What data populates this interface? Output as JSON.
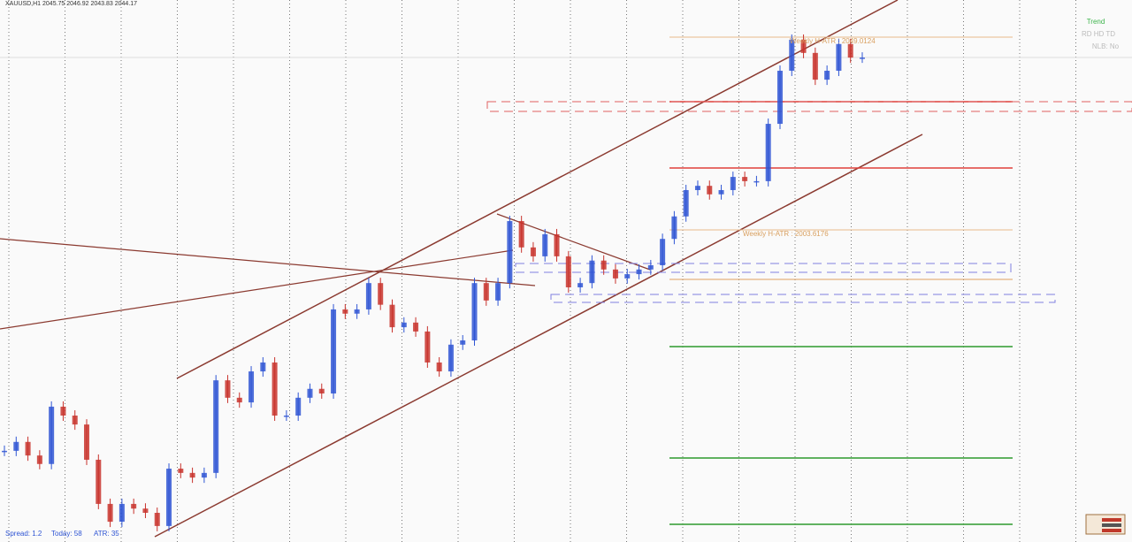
{
  "chart_data": {
    "type": "candle",
    "title": "XAUUSD,H1  2045.75 2046.92 2043.83 2044.17",
    "ylim": [
      1930.13,
      2057.76
    ],
    "up_color": "#2f55d4",
    "down_color": "#c8322c",
    "values": [
      1951.6,
      1953.7,
      1950.5,
      1948.5,
      1962.0,
      1959.9,
      1957.8,
      1949.5,
      1939.1,
      1934.9,
      1939.1,
      1938.0,
      1937.0,
      1933.9,
      1947.4,
      1946.4,
      1945.3,
      1946.4,
      1968.2,
      1964.1,
      1963.0,
      1970.3,
      1972.4,
      1959.9,
      1959.9,
      1964.1,
      1966.2,
      1965.1,
      1984.9,
      1983.9,
      1984.9,
      1991.1,
      1986.0,
      1980.7,
      1981.8,
      1979.7,
      1972.4,
      1970.3,
      1976.6,
      1977.6,
      1991.1,
      1987.0,
      1991.1,
      2005.7,
      1999.5,
      1997.4,
      2002.6,
      1997.4,
      1990.1,
      1991.1,
      1996.4,
      1994.3,
      1992.2,
      1993.2,
      1994.3,
      1995.3,
      2001.5,
      2006.8,
      2013.0,
      2014.0,
      2012.0,
      2013.0,
      2016.1,
      2015.1,
      2015.1,
      2028.6,
      2041.1,
      2048.4,
      2045.3,
      2039.0,
      2041.1,
      2047.4,
      2044.2,
      2044.2
    ],
    "annotations": [
      {
        "text": "Weekly H-ATR : 2049.0124",
        "value": 2049.0124
      },
      {
        "text": "Weekly H-ATR : 2003.6176",
        "value": 2003.6176
      }
    ],
    "panel": {
      "title": "Trend",
      "row1": "RD  HD  TD",
      "row2": "NLB: No"
    },
    "status": {
      "spread": "Spread: 1.2",
      "today": "Today: 58",
      "atr": "ATR: 35"
    }
  }
}
